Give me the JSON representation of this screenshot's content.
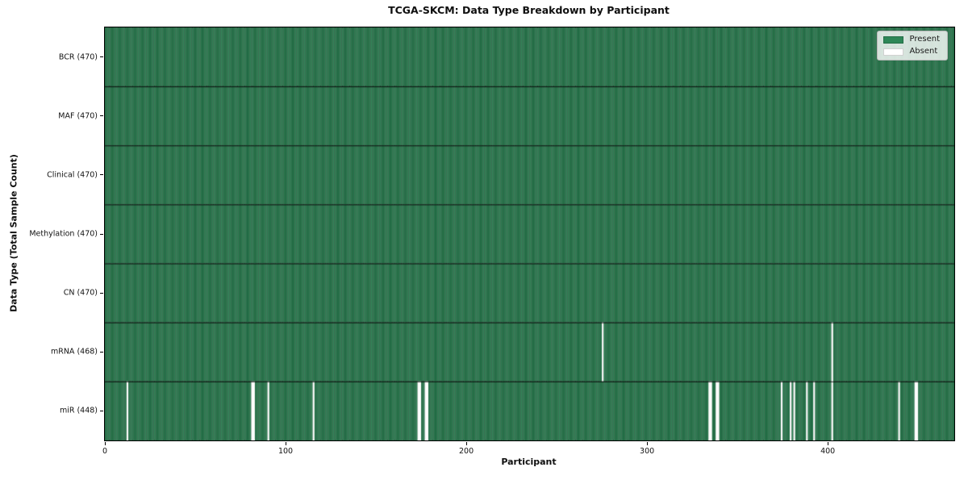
{
  "chart_data": {
    "type": "heatmap",
    "title": "TCGA-SKCM: Data Type Breakdown by Participant",
    "xlabel": "Participant",
    "ylabel": "Data Type (Total Sample Count)",
    "n_participants": 470,
    "xlim": [
      0,
      470
    ],
    "x_ticks": [
      0,
      100,
      200,
      300,
      400
    ],
    "grid": false,
    "legend_position": "upper right",
    "legend": [
      {
        "label": "Present",
        "color": "#2e8757"
      },
      {
        "label": "Absent",
        "color": "#ffffff"
      }
    ],
    "colors": {
      "present": "#2e8757",
      "absent": "#ffffff",
      "cell_edge": "rgba(0,0,0,0.38)",
      "row_divider": "rgba(0,0,0,0.82)",
      "spine": "#000000"
    },
    "rows": [
      {
        "label": "BCR (470)",
        "data_type": "BCR",
        "total": 470,
        "absent": []
      },
      {
        "label": "MAF (470)",
        "data_type": "MAF",
        "total": 470,
        "absent": []
      },
      {
        "label": "Clinical (470)",
        "data_type": "Clinical",
        "total": 470,
        "absent": []
      },
      {
        "label": "Methylation (470)",
        "data_type": "Methylation",
        "total": 470,
        "absent": []
      },
      {
        "label": "CN (470)",
        "data_type": "CN",
        "total": 470,
        "absent": []
      },
      {
        "label": "mRNA (468)",
        "data_type": "mRNA",
        "total": 468,
        "absent": [
          275,
          402
        ]
      },
      {
        "label": "miR (448)",
        "data_type": "miR",
        "total": 448,
        "absent": [
          12,
          81,
          82,
          90,
          115,
          173,
          174,
          177,
          178,
          334,
          335,
          338,
          339,
          374,
          379,
          381,
          388,
          392,
          402,
          439,
          448,
          449
        ]
      }
    ]
  }
}
